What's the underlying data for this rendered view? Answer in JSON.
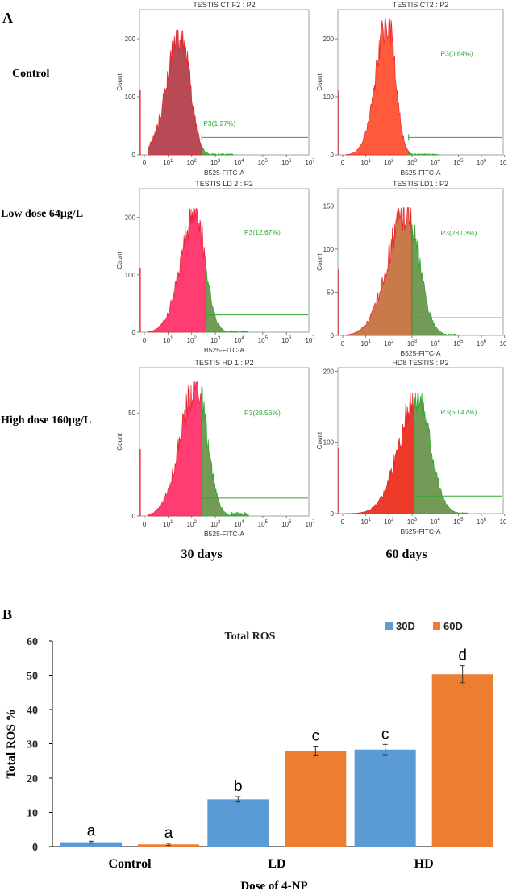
{
  "panel_a": {
    "letter": "A",
    "row_labels": [
      "Control",
      "Low dose 64μg/L",
      "High dose 160μg/L"
    ],
    "column_labels": [
      "30 days",
      "60 days"
    ],
    "x_axis_label": "B525-FITC-A",
    "y_axis_label": "Count",
    "x_ticks": [
      "0",
      "10",
      "10",
      "10",
      "10",
      "10",
      "10",
      "10"
    ],
    "x_tick_exponents": [
      "",
      "1",
      "2",
      "3",
      "4",
      "5",
      "6",
      "7"
    ],
    "colors": {
      "red": "#e8262b",
      "green": "#2ea82e",
      "axis": "#555555"
    }
  },
  "chart_data": [
    {
      "type": "histogram",
      "id": "ct30",
      "title": "TESTIS CT F2 : P2",
      "gate_label": "P3(1.27%)",
      "gate_percent": 1.27,
      "y_ticks": [
        0,
        100,
        200
      ],
      "ylim": [
        0,
        250
      ],
      "peak_count": 215,
      "fill_red": "#b84a55"
    },
    {
      "type": "histogram",
      "id": "ct60",
      "title": "TESTIS CT2 : P2",
      "gate_label": "P3(0.64%)",
      "gate_percent": 0.64,
      "y_ticks": [
        0,
        100,
        200
      ],
      "ylim": [
        0,
        250
      ],
      "peak_count": 235,
      "fill_red": "#ff5a3c"
    },
    {
      "type": "histogram",
      "id": "ld30",
      "title": "TESTIS LD 2 : P2",
      "gate_label": "P3(12.67%)",
      "gate_percent": 12.67,
      "y_ticks": [
        0,
        100,
        200
      ],
      "ylim": [
        0,
        250
      ],
      "peak_count": 215,
      "fill_red": "#ff3d73"
    },
    {
      "type": "histogram",
      "id": "ld60",
      "title": "TESTIS LD1 : P2",
      "gate_label": "P3(28.03%)",
      "gate_percent": 28.03,
      "y_ticks": [
        0,
        50,
        100,
        150
      ],
      "ylim": [
        0,
        170
      ],
      "peak_count": 148,
      "fill_red": "#c97a4a"
    },
    {
      "type": "histogram",
      "id": "hd30",
      "title": "TESTIS HD 1 : P2",
      "gate_label": "P3(28.56%)",
      "gate_percent": 28.56,
      "y_ticks": [
        0,
        50
      ],
      "ylim": [
        0,
        72
      ],
      "peak_count": 65,
      "fill_red": "#ff3d73"
    },
    {
      "type": "histogram",
      "id": "hd60",
      "title": "HD8 TESTIS : P2",
      "gate_label": "P3(50.47%)",
      "gate_percent": 50.47,
      "y_ticks": [
        0,
        100,
        200
      ],
      "ylim": [
        0,
        205
      ],
      "peak_count": 170,
      "fill_red": "#ee3a2a"
    },
    {
      "type": "bar",
      "title": "Total ROS",
      "categories": [
        "Control",
        "LD",
        "HD"
      ],
      "series": [
        {
          "name": "30D",
          "color": "#5b9bd5",
          "values": [
            1.27,
            13.8,
            28.3
          ],
          "errors": [
            0.3,
            0.8,
            1.5
          ],
          "letters": [
            "a",
            "b",
            "c"
          ]
        },
        {
          "name": "60D",
          "color": "#ed7d31",
          "values": [
            0.64,
            28.0,
            50.3
          ],
          "errors": [
            0.3,
            1.3,
            2.5
          ],
          "letters": [
            "a",
            "c",
            "d"
          ]
        }
      ],
      "xlabel": "Dose of 4-NP",
      "ylabel": "Total ROS %",
      "ylim": [
        0,
        60
      ],
      "y_ticks": [
        0,
        10,
        20,
        30,
        40,
        50,
        60
      ]
    }
  ],
  "panel_b": {
    "letter": "B"
  }
}
